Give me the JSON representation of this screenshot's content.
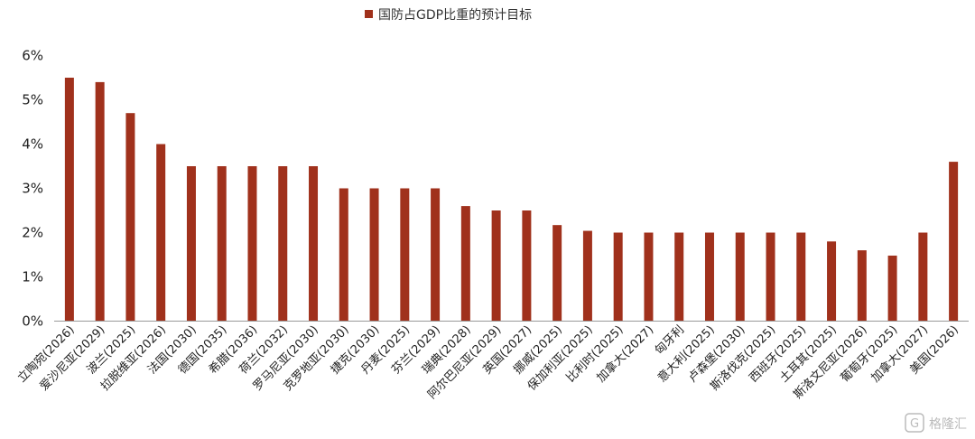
{
  "chart_data": {
    "type": "bar",
    "legend": {
      "entries": [
        {
          "label": "国防占GDP比重的预计目标",
          "color": "#A0311C"
        }
      ],
      "position": "top-center"
    },
    "series": [
      {
        "name": "国防占GDP比重的预计目标",
        "color": "#A0311C",
        "values": [
          5.5,
          5.4,
          4.7,
          4.0,
          3.5,
          3.5,
          3.5,
          3.5,
          3.5,
          3.0,
          3.0,
          3.0,
          3.0,
          2.6,
          2.5,
          2.5,
          2.17,
          2.04,
          2.0,
          2.0,
          2.0,
          2.0,
          2.0,
          2.0,
          2.0,
          1.8,
          1.6,
          1.48,
          2.0,
          3.6
        ]
      }
    ],
    "categories": [
      "立陶宛(2026)",
      "爱沙尼亚(2029)",
      "波兰(2025)",
      "拉脱维亚(2026)",
      "法国(2030)",
      "德国(2035)",
      "希腊(2036)",
      "荷兰(2032)",
      "罗马尼亚(2030)",
      "克罗地亚(2030)",
      "捷克(2030)",
      "丹麦(2025)",
      "芬兰(2029)",
      "瑞典(2028)",
      "阿尔巴尼亚(2029)",
      "英国(2027)",
      "挪威(2025)",
      "保加利亚(2025)",
      "比利时(2025)",
      "加拿大(2027)",
      "匈牙利",
      "意大利(2025)",
      "卢森堡(2030)",
      "斯洛伐克(2025)",
      "西班牙(2025)",
      "土耳其(2025)",
      "斯洛文尼亚(2026)",
      "葡萄牙(2025)",
      "加拿大(2027)",
      "美国(2026)"
    ],
    "yticks": [
      "0%",
      "1%",
      "2%",
      "3%",
      "4%",
      "5%",
      "6%"
    ],
    "ylim": [
      0,
      6
    ],
    "grid": false
  },
  "watermark": {
    "text": "格隆汇",
    "icon": "gelonghui-logo-icon"
  }
}
